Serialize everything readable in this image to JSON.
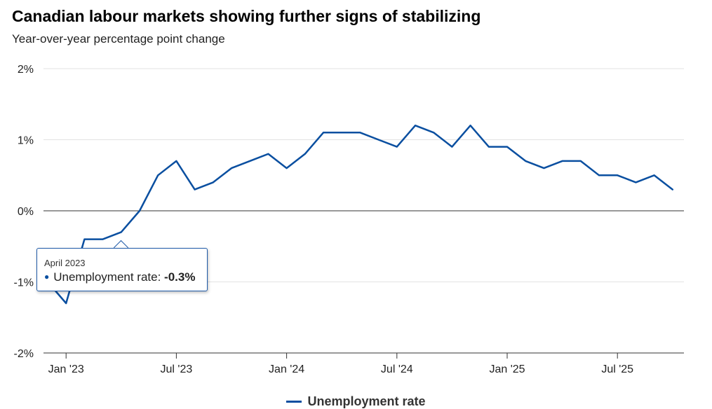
{
  "title": "Canadian labour markets showing further signs of stabilizing",
  "subtitle": "Year-over-year percentage point change",
  "chart_data": {
    "type": "line",
    "title": "Canadian labour markets showing further signs of stabilizing",
    "subtitle": "Year-over-year percentage point change",
    "xlabel": "",
    "ylabel": "",
    "ylim": [
      -2,
      2
    ],
    "yticks": [
      "2%",
      "1%",
      "0%",
      "-1%",
      "-2%"
    ],
    "ytick_values": [
      2,
      1,
      0,
      -1,
      -2
    ],
    "xticks": [
      "Jan '23",
      "Jul '23",
      "Jan '24",
      "Jul '24",
      "Jan '25",
      "Jul '25"
    ],
    "x": [
      "Dec 2022",
      "Jan 2023",
      "Feb 2023",
      "Mar 2023",
      "Apr 2023",
      "May 2023",
      "Jun 2023",
      "Jul 2023",
      "Aug 2023",
      "Sep 2023",
      "Oct 2023",
      "Nov 2023",
      "Dec 2023",
      "Jan 2024",
      "Feb 2024",
      "Mar 2024",
      "Apr 2024",
      "May 2024",
      "Jun 2024",
      "Jul 2024",
      "Aug 2024",
      "Sep 2024",
      "Oct 2024",
      "Nov 2024",
      "Dec 2024",
      "Jan 2025",
      "Feb 2025",
      "Mar 2025",
      "Apr 2025",
      "May 2025",
      "Jun 2025",
      "Jul 2025",
      "Aug 2025",
      "Sep 2025",
      "Oct 2025"
    ],
    "series": [
      {
        "name": "Unemployment rate",
        "color": "#0a4fa0",
        "values": [
          -1.0,
          -1.3,
          -0.4,
          -0.4,
          -0.3,
          0.0,
          0.5,
          0.7,
          0.3,
          0.4,
          0.6,
          0.7,
          0.8,
          0.6,
          0.8,
          1.1,
          1.1,
          1.1,
          1.0,
          0.9,
          1.2,
          1.1,
          0.9,
          1.2,
          0.9,
          0.9,
          0.7,
          0.6,
          0.7,
          0.7,
          0.5,
          0.5,
          0.4,
          0.5,
          0.3
        ]
      }
    ],
    "grid": true,
    "legend": "bottom-center",
    "tooltip": {
      "date": "April 2023",
      "label": "Unemployment rate: ",
      "value": "-0.3%"
    }
  }
}
